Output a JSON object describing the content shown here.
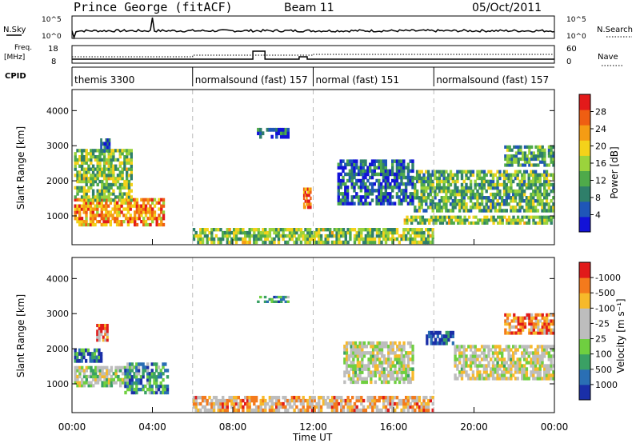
{
  "header": {
    "station": "Prince George (fitACF)",
    "beam": "Beam 11",
    "date": "05/Oct/2011"
  },
  "top_panels": {
    "nsky_label": "N.Sky",
    "nsky_ticks": [
      "10^5",
      "10^0"
    ],
    "nsearch_label": "N.Search",
    "nsearch_ticks": [
      "10^5",
      "10^0"
    ],
    "freq_label_1": "Freq.",
    "freq_label_2": "[MHz]",
    "freq_ticks": [
      "18",
      "8"
    ],
    "nave_label": "Nave",
    "nave_ticks": [
      "60",
      "0"
    ],
    "cpid_label": "CPID",
    "cpid_segments": [
      {
        "name": "themis 3300",
        "start_hour": 0
      },
      {
        "name": "normalsound (fast) 157",
        "start_hour": 6
      },
      {
        "name": "normal (fast) 151",
        "start_hour": 12
      },
      {
        "name": "normalsound (fast) 157",
        "start_hour": 18
      }
    ]
  },
  "chart_data": [
    {
      "type": "heatmap",
      "title": "",
      "ylabel": "Slant Range [km]",
      "xlabel": "Time UT",
      "xlim_hours": [
        0,
        24
      ],
      "ylim": [
        180,
        4600
      ],
      "y_ticks": [
        "1000",
        "2000",
        "3000",
        "4000"
      ],
      "x_ticks": [
        "00:00",
        "04:00",
        "08:00",
        "12:00",
        "16:00",
        "20:00",
        "00:00"
      ],
      "mode_boundaries_hours": [
        6,
        12,
        18
      ],
      "colorbar_label": "Power [dB]",
      "colorbar_ticks": [
        "4",
        "8",
        "12",
        "16",
        "20",
        "24",
        "28"
      ],
      "colorbar_colors": [
        "#1212d8",
        "#1f56b8",
        "#2f7f6a",
        "#4faa4a",
        "#9bd33c",
        "#f4d21a",
        "#f59c14",
        "#ef5e12",
        "#e31a1a"
      ],
      "echo_regions": [
        {
          "t0": 0.1,
          "t1": 4.6,
          "r0": 700,
          "r1": 1500,
          "level": 0.75
        },
        {
          "t0": 0.1,
          "t1": 3.0,
          "r0": 1400,
          "r1": 2900,
          "level": 0.45
        },
        {
          "t0": 1.4,
          "t1": 1.9,
          "r0": 2800,
          "r1": 3200,
          "level": 0.25
        },
        {
          "t0": 9.2,
          "t1": 10.8,
          "r0": 3200,
          "r1": 3500,
          "level": 0.2
        },
        {
          "t0": 11.5,
          "t1": 11.9,
          "r0": 1200,
          "r1": 1800,
          "level": 0.85
        },
        {
          "t0": 6.0,
          "t1": 18.0,
          "r0": 200,
          "r1": 650,
          "level": 0.45
        },
        {
          "t0": 13.2,
          "t1": 17.0,
          "r0": 1300,
          "r1": 2600,
          "level": 0.2
        },
        {
          "t0": 16.5,
          "t1": 24.0,
          "r0": 750,
          "r1": 1000,
          "level": 0.45
        },
        {
          "t0": 17.0,
          "t1": 24.0,
          "r0": 1100,
          "r1": 2300,
          "level": 0.4
        },
        {
          "t0": 21.5,
          "t1": 24.0,
          "r0": 2400,
          "r1": 3000,
          "level": 0.35
        }
      ]
    },
    {
      "type": "heatmap",
      "title": "",
      "ylabel": "Slant Range [km]",
      "xlabel": "Time UT",
      "xlim_hours": [
        0,
        24
      ],
      "ylim": [
        180,
        4600
      ],
      "y_ticks": [
        "1000",
        "2000",
        "3000",
        "4000"
      ],
      "x_ticks": [
        "00:00",
        "04:00",
        "08:00",
        "12:00",
        "16:00",
        "20:00",
        "00:00"
      ],
      "mode_boundaries_hours": [
        6,
        12,
        18
      ],
      "colorbar_label": "Velocity [m s⁻¹]",
      "colorbar_ticks": [
        "1000",
        "500",
        "100",
        "25",
        "-25",
        "-100",
        "-500",
        "-1000"
      ],
      "colorbar_colors": [
        "#1a2fa8",
        "#2a6fb4",
        "#3aa064",
        "#6fcf40",
        "#bdbdbd",
        "#bdbdbd",
        "#f7b92a",
        "#f47a1c",
        "#e11a1a"
      ],
      "echo_regions": [
        {
          "t0": 0.1,
          "t1": 2.8,
          "r0": 900,
          "r1": 1500,
          "level": 0.5
        },
        {
          "t0": 0.1,
          "t1": 1.5,
          "r0": 1600,
          "r1": 2000,
          "level": 0.85
        },
        {
          "t0": 2.6,
          "t1": 4.8,
          "r0": 700,
          "r1": 1600,
          "level": 0.75
        },
        {
          "t0": 1.2,
          "t1": 1.8,
          "r0": 2200,
          "r1": 2700,
          "level": 0.2
        },
        {
          "t0": 9.2,
          "t1": 10.8,
          "r0": 3300,
          "r1": 3500,
          "level": 0.7
        },
        {
          "t0": 6.0,
          "t1": 18.0,
          "r0": 200,
          "r1": 650,
          "level": 0.3
        },
        {
          "t0": 13.5,
          "t1": 17.0,
          "r0": 1000,
          "r1": 2200,
          "level": 0.45
        },
        {
          "t0": 17.6,
          "t1": 19.0,
          "r0": 2100,
          "r1": 2500,
          "level": 0.9
        },
        {
          "t0": 19.0,
          "t1": 24.0,
          "r0": 1100,
          "r1": 2100,
          "level": 0.45
        },
        {
          "t0": 21.5,
          "t1": 24.0,
          "r0": 2400,
          "r1": 3000,
          "level": 0.2
        }
      ]
    }
  ]
}
